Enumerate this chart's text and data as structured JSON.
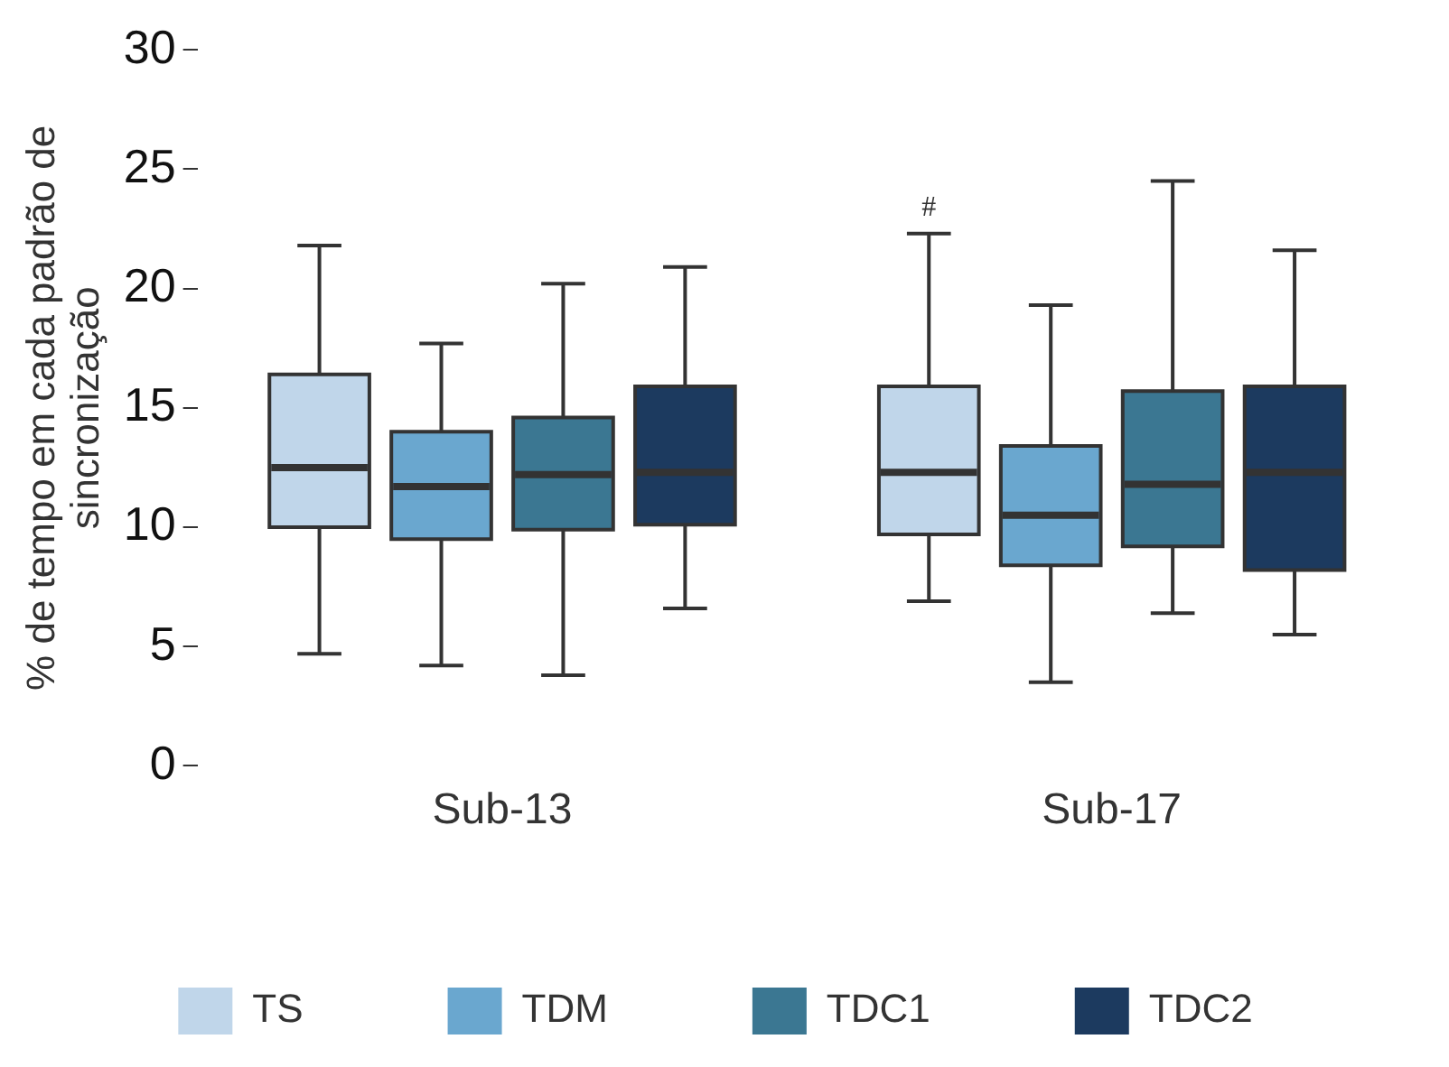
{
  "chart_data": {
    "type": "box",
    "ylabel": "% de tempo em cada padrão de sincronização",
    "categories": [
      "Sub-13",
      "Sub-17"
    ],
    "ylim": [
      0,
      30
    ],
    "yticks": [
      0,
      5,
      10,
      15,
      20,
      25,
      30
    ],
    "grid": false,
    "legend": "bottom",
    "annotations": [
      "#"
    ],
    "series": [
      {
        "name": "TS",
        "color": "#c0d6ea",
        "boxes": [
          {
            "low": 4.7,
            "q1": 10.0,
            "median": 12.5,
            "q3": 16.4,
            "high": 21.8
          },
          {
            "low": 6.9,
            "q1": 9.7,
            "median": 12.3,
            "q3": 15.9,
            "high": 22.3
          }
        ]
      },
      {
        "name": "TDM",
        "color": "#6aa7cf",
        "boxes": [
          {
            "low": 4.2,
            "q1": 9.5,
            "median": 11.7,
            "q3": 14.0,
            "high": 17.7
          },
          {
            "low": 3.5,
            "q1": 8.4,
            "median": 10.5,
            "q3": 13.4,
            "high": 19.3
          }
        ]
      },
      {
        "name": "TDC1",
        "color": "#3b7792",
        "boxes": [
          {
            "low": 3.8,
            "q1": 9.9,
            "median": 12.2,
            "q3": 14.6,
            "high": 20.2
          },
          {
            "low": 6.4,
            "q1": 9.2,
            "median": 11.8,
            "q3": 15.7,
            "high": 24.5
          }
        ]
      },
      {
        "name": "TDC2",
        "color": "#1c3a5f",
        "boxes": [
          {
            "low": 6.6,
            "q1": 10.1,
            "median": 12.3,
            "q3": 15.9,
            "high": 20.9
          },
          {
            "low": 5.5,
            "q1": 8.2,
            "median": 12.3,
            "q3": 15.9,
            "high": 21.6
          }
        ]
      }
    ]
  }
}
